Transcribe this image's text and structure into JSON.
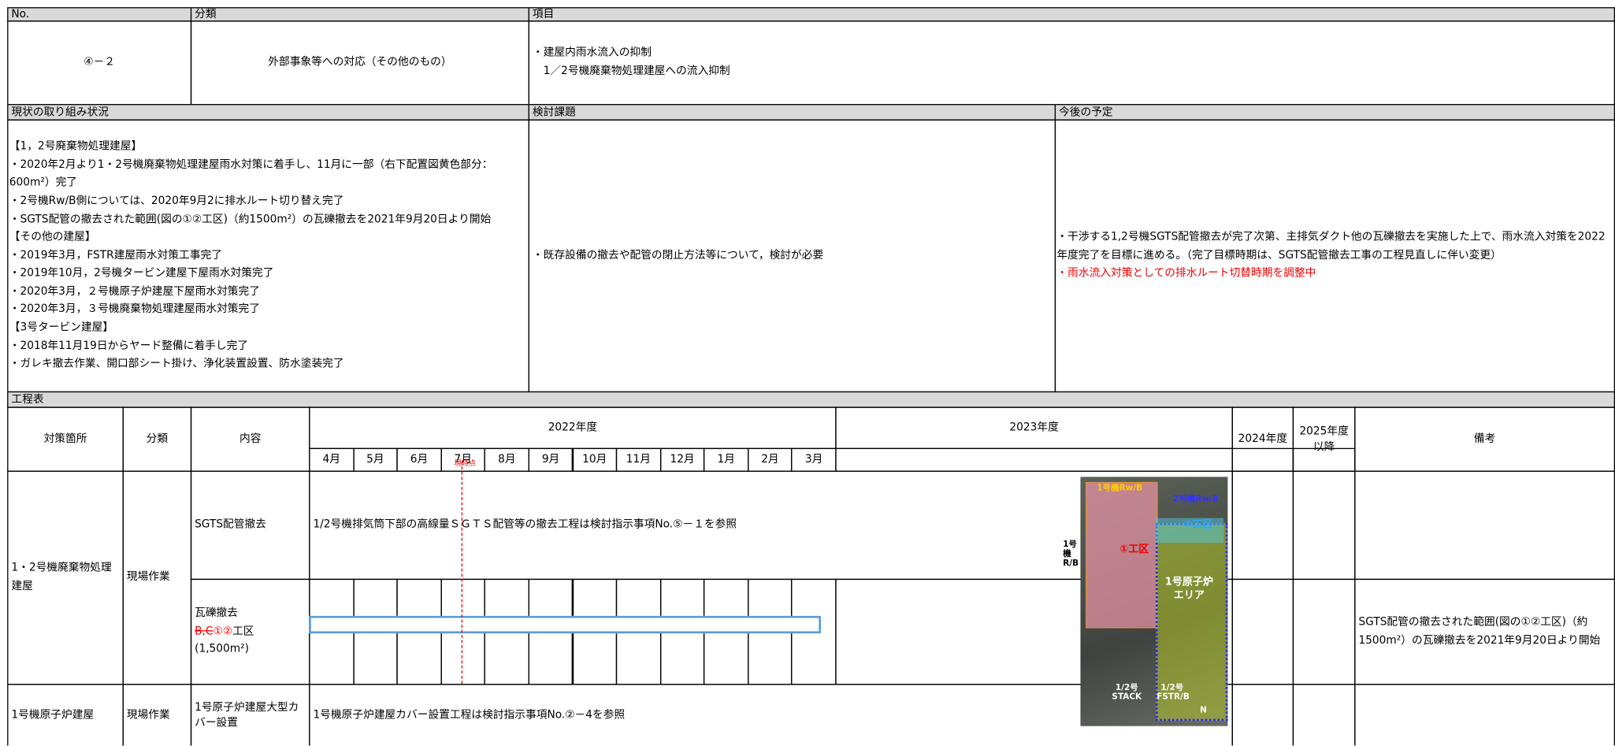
{
  "header": {
    "no": "No.",
    "category": "分類",
    "item": "項目"
  },
  "summary": {
    "no": "④－２",
    "category": "外部事象等への対応（その他のもの）",
    "item_lines": [
      "・建屋内雨水流入の抑制",
      "　1／2号機廃棄物処理建屋への流入抑制"
    ]
  },
  "status_headers": {
    "current": "現状の取り組み状況",
    "issues": "検討課題",
    "plan": "今後の予定"
  },
  "current_lines": [
    "【1，2号廃棄物処理建屋】",
    "・2020年2月より1・2号機廃棄物処理建屋雨水対策に着手し、11月に一部（右下配置図黄色部分：600m²）完了",
    "・2号機Rw/B側については、2020年9月2に排水ルート切り替え完了",
    "・SGTS配管の撤去された範囲(図の①②工区)（約1500m²）の瓦礫撤去を2021年9月20日より開始",
    "【その他の建屋】",
    "・2019年3月，FSTR建屋雨水対策工事完了",
    "・2019年10月，2号機タービン建屋下屋雨水対策完了",
    "・2020年3月，２号機原子炉建屋下屋雨水対策完了",
    "・2020年3月，３号機廃棄物処理建屋雨水対策完了",
    "【3号タービン建屋】",
    "・2018年11月19日からヤード整備に着手し完了",
    "・ガレキ撤去作業、開口部シート掛け、浄化装置設置、防水塗装完了"
  ],
  "issues": "・既存設備の撤去や配管の閉止方法等について，検討が必要",
  "plan": "・干渉する1,2号機SGTS配管撤去が完了次第、主排気ダクト他の瓦礫撤去を実施した上で、雨水流入対策を2022年度完了を目標に進める。（完了目標時期は、SGTS配管撤去工事の工程見直しに伴い変更）",
  "plan_note": "・雨水流入対策としての排水ルート切替時期を調整中",
  "schedule": {
    "title": "工程表",
    "headers": {
      "location": "対策箇所",
      "category": "分類",
      "content": "内容",
      "fy2022": "2022年度",
      "fy2023": "2023年度",
      "fy2024": "2024年度",
      "fy2025": "2025年度以降",
      "remarks": "備考"
    },
    "months": [
      "4月",
      "5月",
      "6月",
      "7月",
      "8月",
      "9月",
      "10月",
      "11月",
      "12月",
      "1月",
      "2月",
      "3月"
    ],
    "now_label": "現時点",
    "location_1": "1・2号機廃棄物処理建屋",
    "category_1": "現場作業",
    "sgts_content": "SGTS配管撤去",
    "sgts_note": "1/2号機排気筒下部の高線量ＳＧＴＳ配管等の撤去工程は検討指示事項No.⑤－１を参照",
    "rubble_content": {
      "title": "瓦礫撤去",
      "struck": "B,C",
      "red": "①②",
      "suffix": "工区",
      "area": "(1,500m²)"
    },
    "rubble_remarks": "SGTS配管の撤去された範囲(図の①②工区)（約1500m²）の瓦礫撤去を2021年9月20日より開始",
    "location_2": "1号機原子炉建屋",
    "category_2": "現場作業",
    "cover_content": "1号原子炉建屋大型カバー設置",
    "cover_note": "1号機原子炉建屋カバー設置工程は検討指示事項No.②－4を参照"
  },
  "photo_labels": {
    "rw1": "1号機Rw/B",
    "rw2": "2号機Rw/B",
    "rb1": "1号機R/B",
    "zone1": "①工区",
    "zone2": "②工区",
    "area": "1号原子炉エリア",
    "stack": "1/2号STACK",
    "fstr": "1/2号FSTR/B",
    "north": "N"
  }
}
